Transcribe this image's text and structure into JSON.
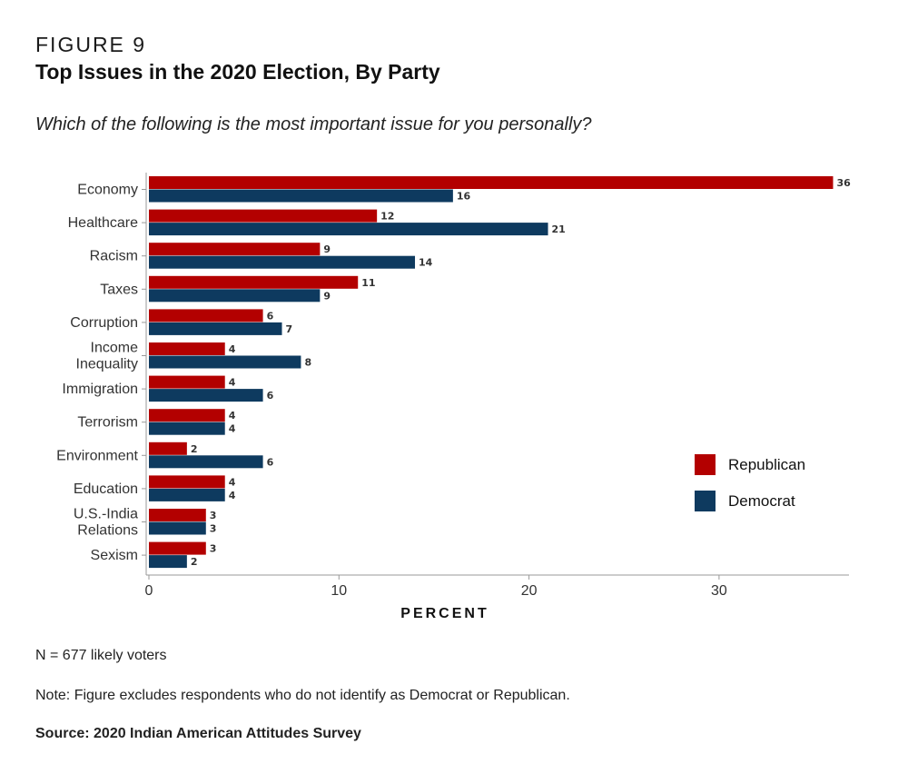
{
  "header": {
    "figure_label": "FIGURE 9",
    "title": "Top Issues in the 2020 Election, By Party",
    "subtitle": "Which of the following is the most important issue for you personally?"
  },
  "chart_data": {
    "type": "bar",
    "orientation": "horizontal",
    "categories": [
      [
        "Economy"
      ],
      [
        "Healthcare"
      ],
      [
        "Racism"
      ],
      [
        "Taxes"
      ],
      [
        "Corruption"
      ],
      [
        "Income",
        "Inequality"
      ],
      [
        "Immigration"
      ],
      [
        "Terrorism"
      ],
      [
        "Environment"
      ],
      [
        "Education"
      ],
      [
        "U.S.-India",
        "Relations"
      ],
      [
        "Sexism"
      ]
    ],
    "series": [
      {
        "name": "Republican",
        "color": "#b30000",
        "values": [
          36,
          12,
          9,
          11,
          6,
          4,
          4,
          4,
          2,
          4,
          3,
          3
        ]
      },
      {
        "name": "Democrat",
        "color": "#0e3a5f",
        "values": [
          16,
          21,
          14,
          9,
          7,
          8,
          6,
          4,
          6,
          4,
          3,
          2
        ]
      }
    ],
    "xlabel": "PERCENT",
    "xlim": [
      0,
      37
    ],
    "xticks": [
      0,
      10,
      20,
      30
    ],
    "legend_position": "right",
    "grid": false
  },
  "notes": {
    "n": "N = 677 likely voters",
    "exclusion": "Note: Figure excludes respondents who do not identify as Democrat or Republican.",
    "source": "Source: 2020 Indian American Attitudes Survey"
  }
}
